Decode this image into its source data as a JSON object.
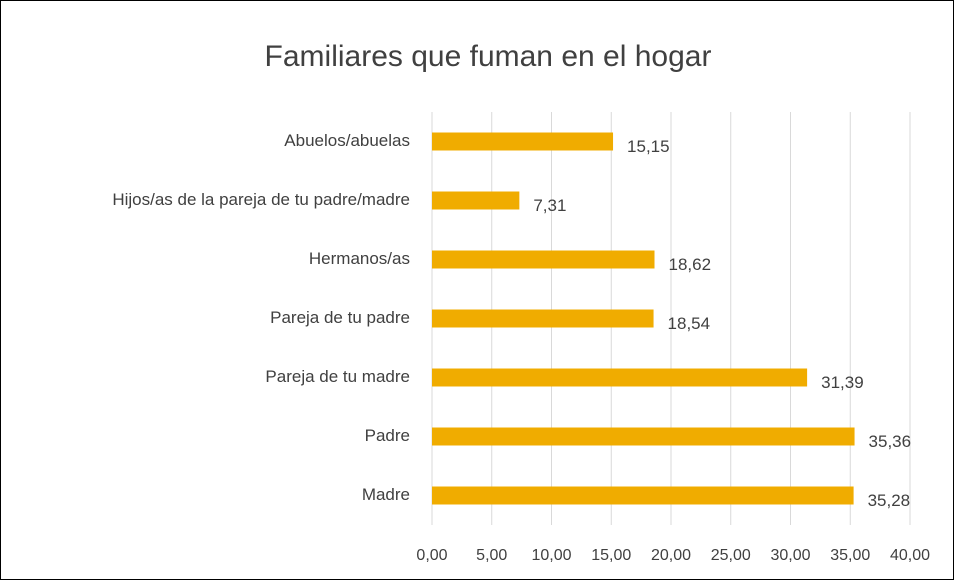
{
  "chart_data": {
    "type": "bar",
    "orientation": "horizontal",
    "title": "Familiares que fuman en el hogar",
    "categories": [
      "Abuelos/abuelas",
      "Hijos/as de la pareja de tu padre/madre",
      "Hermanos/as",
      "Pareja de tu padre",
      "Pareja de tu madre",
      "Padre",
      "Madre"
    ],
    "values": [
      15.15,
      7.31,
      18.62,
      18.54,
      31.39,
      35.36,
      35.28
    ],
    "value_labels": [
      "15,15",
      "7,31",
      "18,62",
      "18,54",
      "31,39",
      "35,36",
      "35,28"
    ],
    "color": "#f0ac00",
    "xlim": [
      0,
      40
    ],
    "xticks": [
      {
        "value": 0,
        "label": "0,00"
      },
      {
        "value": 5,
        "label": "5,00"
      },
      {
        "value": 10,
        "label": "10,00"
      },
      {
        "value": 15,
        "label": "15,00"
      },
      {
        "value": 20,
        "label": "20,00"
      },
      {
        "value": 25,
        "label": "25,00"
      },
      {
        "value": 30,
        "label": "30,00"
      },
      {
        "value": 35,
        "label": "35,00"
      },
      {
        "value": 40,
        "label": "40,00"
      }
    ],
    "grid": true
  }
}
